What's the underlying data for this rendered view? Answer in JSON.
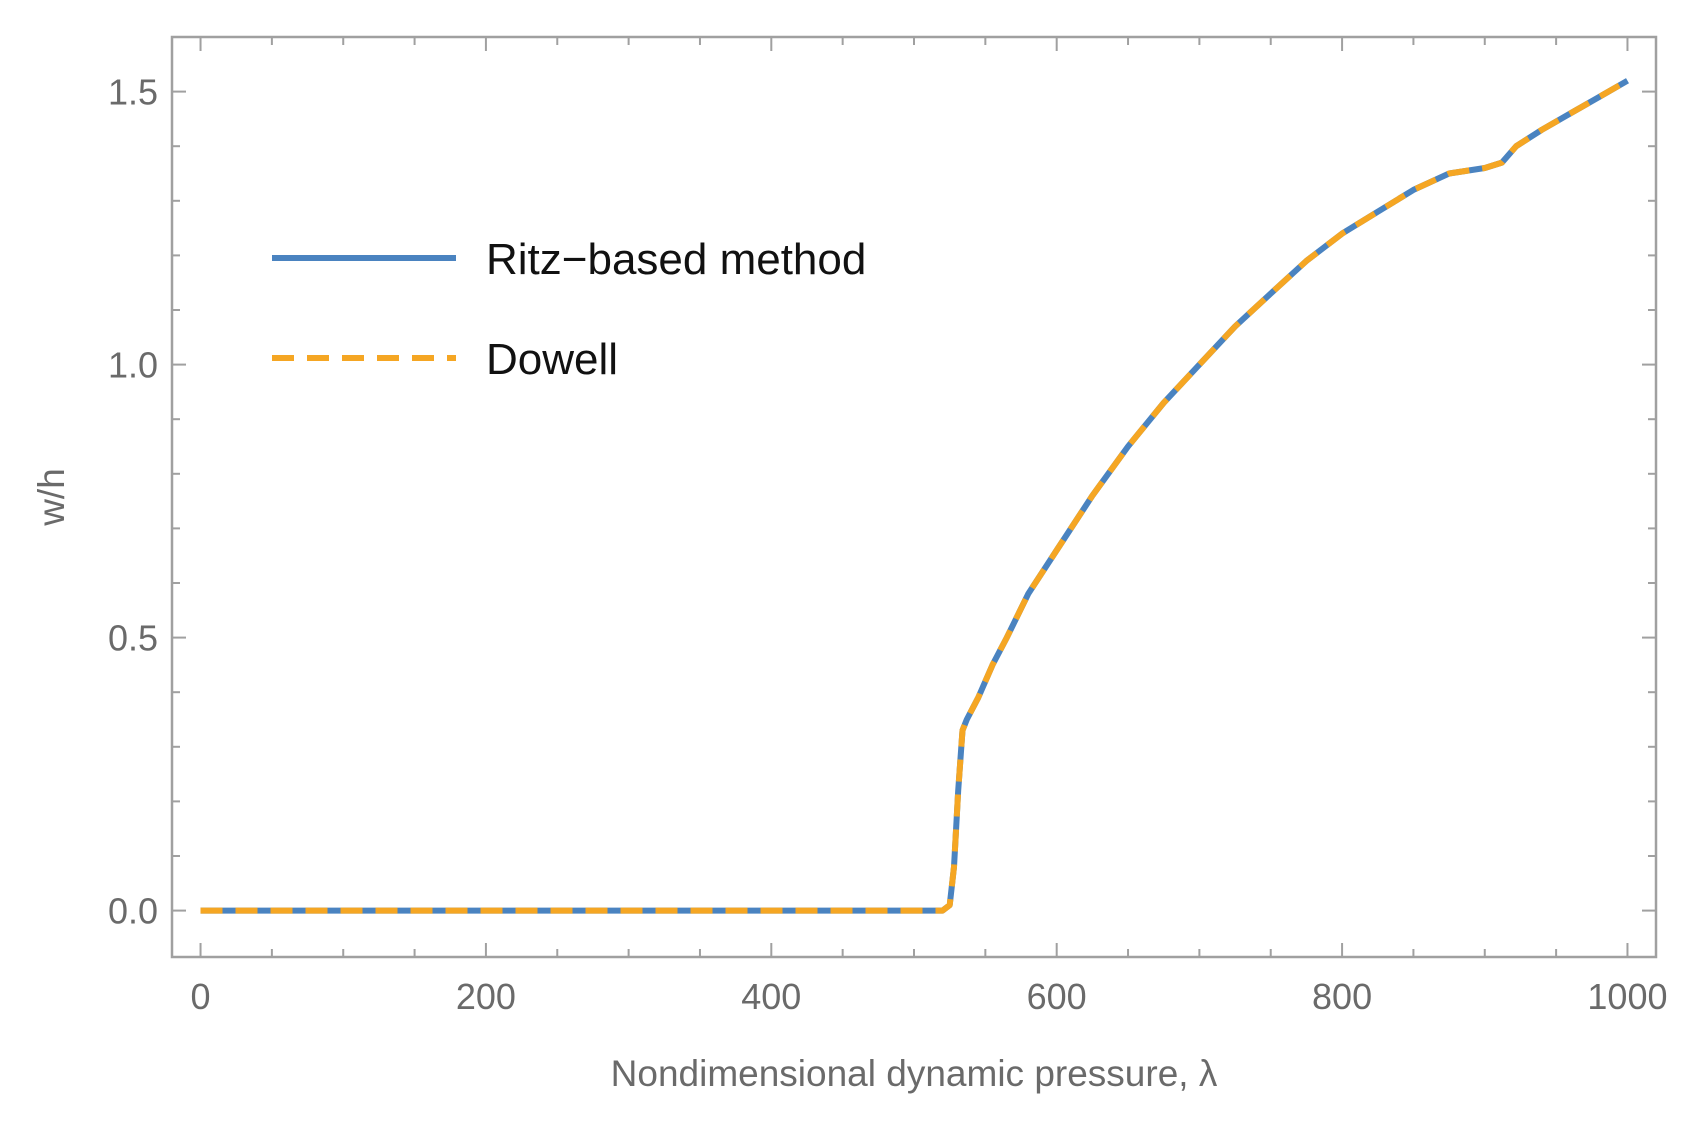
{
  "chart_data": {
    "type": "line",
    "title": "",
    "xlabel": "Nondimensional dynamic pressure, λ",
    "ylabel": "w/h",
    "xlim": [
      -20,
      1020
    ],
    "ylim": [
      -0.085,
      1.6
    ],
    "x_ticks": [
      0,
      200,
      400,
      600,
      800,
      1000
    ],
    "x_tick_labels": [
      "0",
      "200",
      "400",
      "600",
      "800",
      "1000"
    ],
    "y_ticks": [
      0.0,
      0.5,
      1.0,
      1.5
    ],
    "y_tick_labels": [
      "0.0",
      "0.5",
      "1.0",
      "1.5"
    ],
    "x_minor_step": 50,
    "y_minor_step": 0.1,
    "grid": false,
    "legend": {
      "position": "upper-left",
      "entries": [
        "Ritz−based method",
        "Dowell"
      ]
    },
    "series": [
      {
        "name": "Ritz−based method",
        "color": "#4a83c0",
        "style": "solid",
        "x": [
          0,
          100,
          200,
          300,
          400,
          500,
          520,
          525,
          528,
          531,
          534,
          537,
          545,
          555,
          565,
          580,
          600,
          625,
          650,
          675,
          700,
          725,
          750,
          775,
          800,
          825,
          850,
          875,
          900,
          912,
          922,
          940,
          960,
          980,
          1000
        ],
        "y": [
          0,
          0,
          0,
          0,
          0,
          0,
          0,
          0.01,
          0.08,
          0.22,
          0.33,
          0.35,
          0.39,
          0.45,
          0.5,
          0.58,
          0.66,
          0.76,
          0.85,
          0.93,
          1.0,
          1.07,
          1.13,
          1.19,
          1.24,
          1.28,
          1.32,
          1.35,
          1.36,
          1.37,
          1.4,
          1.43,
          1.46,
          1.49,
          1.52
        ]
      },
      {
        "name": "Dowell",
        "color": "#f5a623",
        "style": "dashed",
        "x": [
          0,
          100,
          200,
          300,
          400,
          500,
          520,
          525,
          528,
          531,
          534,
          537,
          545,
          555,
          565,
          580,
          600,
          625,
          650,
          675,
          700,
          725,
          750,
          775,
          800,
          825,
          850,
          875,
          900,
          912,
          922,
          940,
          960,
          980,
          1000
        ],
        "y": [
          0,
          0,
          0,
          0,
          0,
          0,
          0,
          0.01,
          0.08,
          0.22,
          0.33,
          0.35,
          0.39,
          0.45,
          0.5,
          0.58,
          0.66,
          0.76,
          0.85,
          0.93,
          1.0,
          1.07,
          1.13,
          1.19,
          1.24,
          1.28,
          1.32,
          1.35,
          1.36,
          1.37,
          1.4,
          1.43,
          1.46,
          1.49,
          1.52
        ]
      }
    ]
  }
}
